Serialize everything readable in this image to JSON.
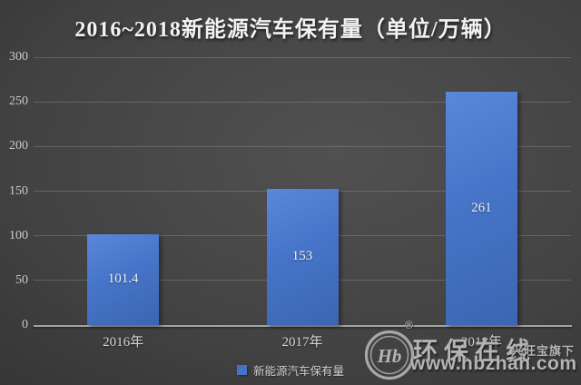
{
  "chart_data": {
    "type": "bar",
    "title": "2016~2018新能源汽车保有量（单位/万辆）",
    "categories": [
      "2016年",
      "2017年",
      "2018年"
    ],
    "values": [
      101.4,
      153,
      261
    ],
    "value_labels": [
      "101.4",
      "153",
      "261"
    ],
    "series_name": "新能源汽车保有量",
    "xlabel": "",
    "ylabel": "",
    "ylim": [
      0,
      300
    ],
    "yticks": [
      0,
      50,
      100,
      150,
      200,
      250,
      300
    ],
    "grid": true,
    "legend_position": "bottom",
    "data_labels": "inside-center",
    "bar_color": "#4472c4"
  },
  "legend": {
    "label": "新能源汽车保有量",
    "swatch_color": "#4472c4"
  },
  "watermark": {
    "logo_icon": "hbzhan-logo",
    "logo_monogram": "Hb",
    "registered_mark": "®",
    "brand": "环保在线",
    "tagline": "兴旺宝旗下",
    "url": "www.hbzhan.com"
  },
  "colors": {
    "background_center": "#515151",
    "background_edge": "#282828",
    "bar": "#4472c4",
    "gridline": "rgba(255,255,255,0.17)",
    "axis_line": "#a3a3a3",
    "title_text": "#f2f2f2",
    "tick_text": "#c9c9c9",
    "watermark_text": "#b4b4b4"
  }
}
